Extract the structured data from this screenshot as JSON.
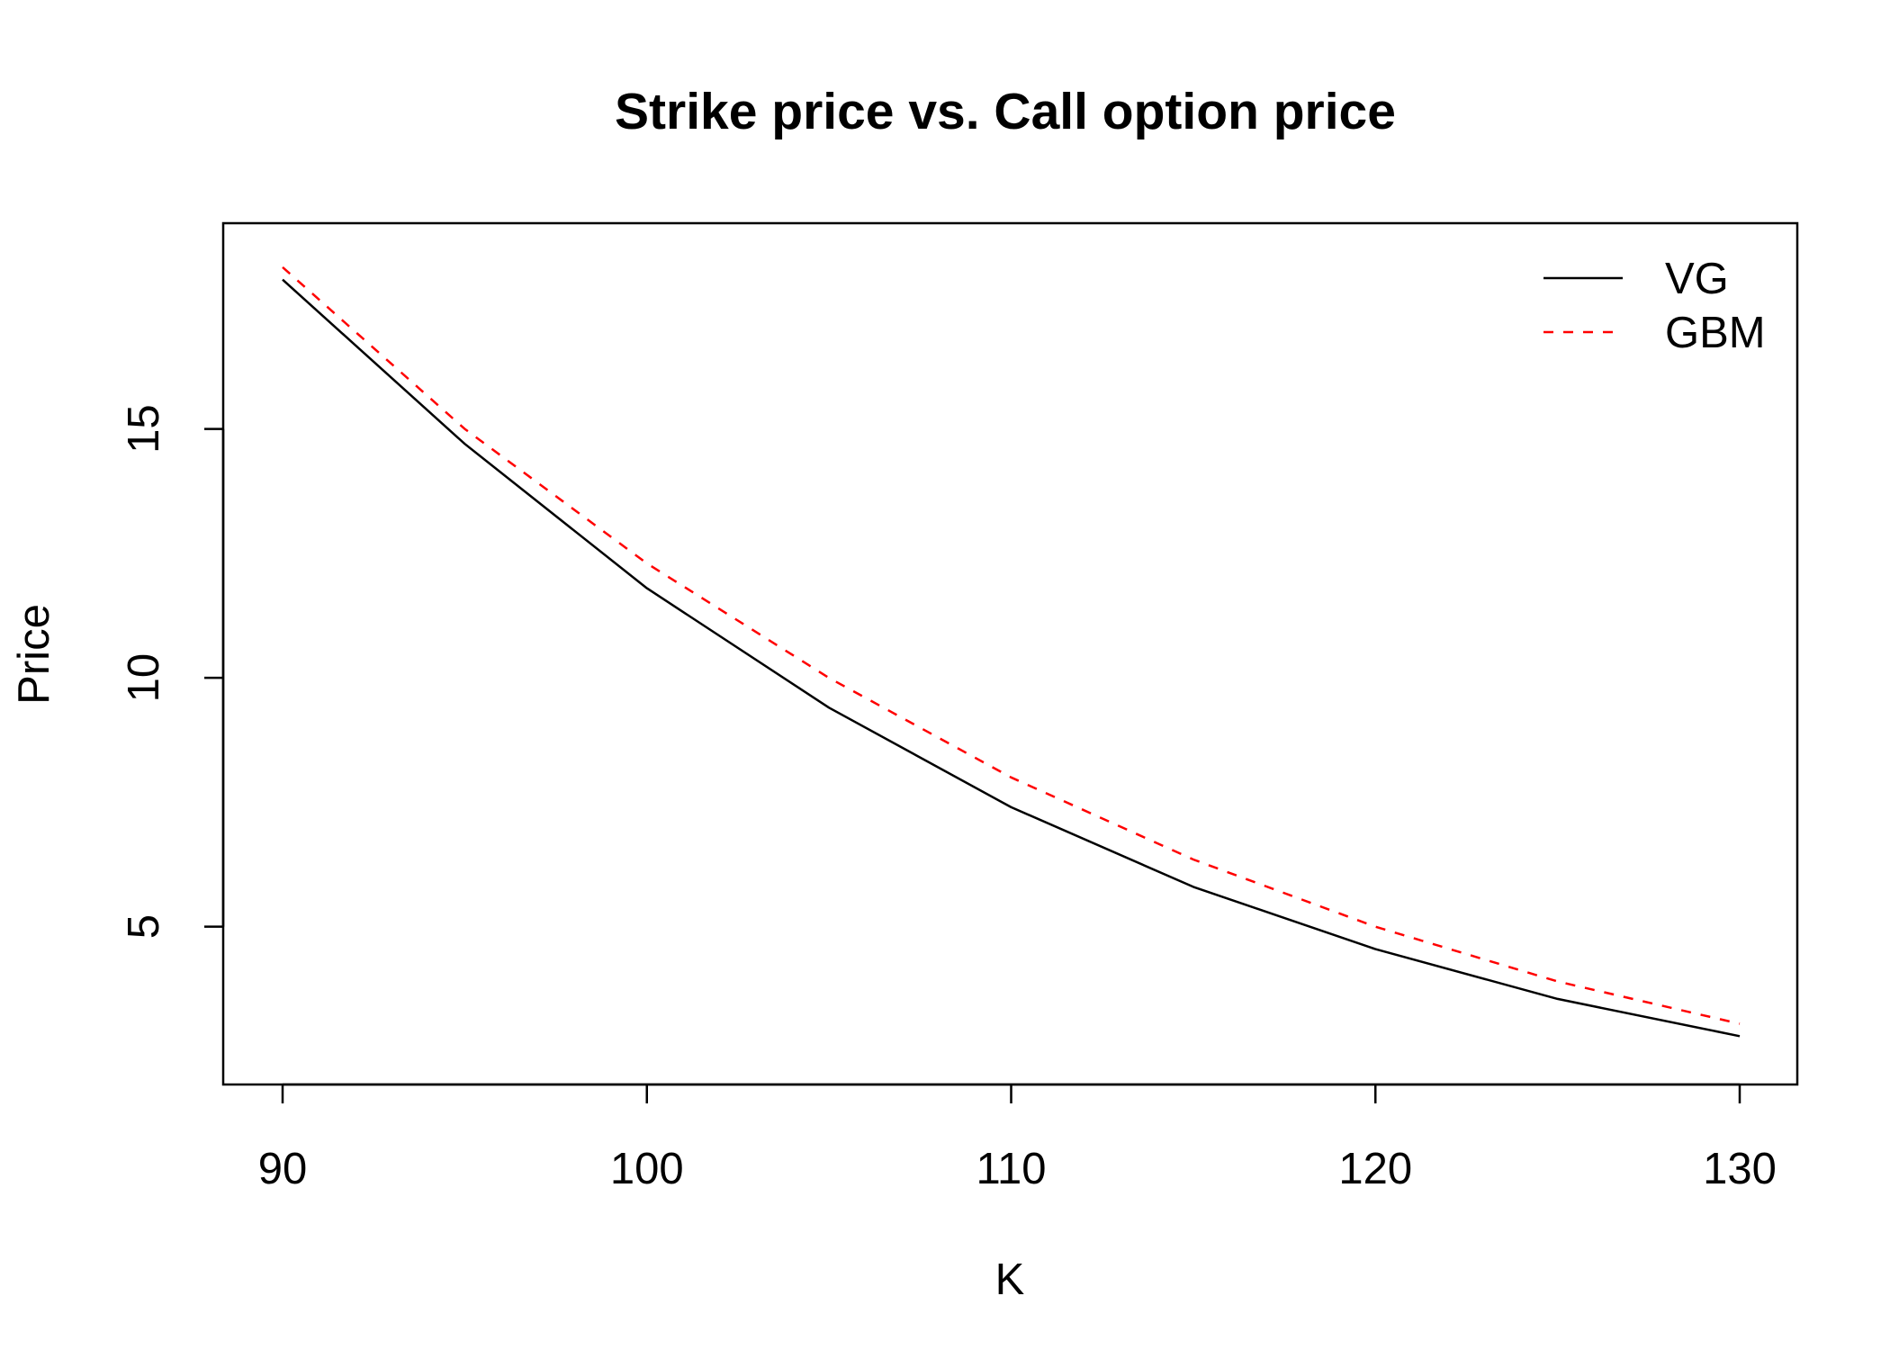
{
  "chart_data": {
    "type": "line",
    "title": "Strike price vs. Call option price",
    "xlabel": "K",
    "ylabel": "Price",
    "xlim": [
      90,
      130
    ],
    "ylim": [
      2.3,
      18.7
    ],
    "x_ticks": [
      90,
      100,
      110,
      120,
      130
    ],
    "y_ticks": [
      5,
      10,
      15
    ],
    "grid": false,
    "legend_position": "top-right",
    "series": [
      {
        "name": "VG",
        "color": "#000000",
        "line_style": "solid",
        "x": [
          90,
          95,
          100,
          105,
          110,
          115,
          120,
          125,
          130
        ],
        "y": [
          18.0,
          14.7,
          11.8,
          9.4,
          7.4,
          5.8,
          4.55,
          3.55,
          2.8
        ]
      },
      {
        "name": "GBM",
        "color": "#ff0000",
        "line_style": "dashed",
        "x": [
          90,
          95,
          100,
          105,
          110,
          115,
          120,
          125,
          130
        ],
        "y": [
          18.25,
          15.0,
          12.3,
          10.0,
          8.0,
          6.35,
          5.0,
          3.9,
          3.05
        ]
      }
    ]
  }
}
